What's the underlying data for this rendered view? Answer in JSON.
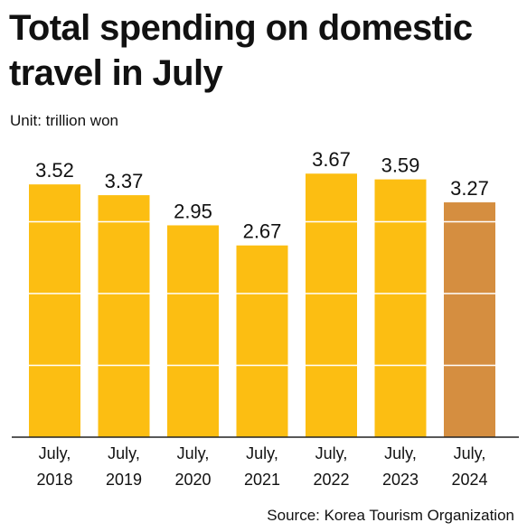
{
  "title_line1": "Total spending on domestic",
  "title_line2": "travel in July",
  "unit": "Unit: trillion won",
  "source": "Source: Korea Tourism Organization",
  "colors": {
    "bar": "#FCBE12",
    "highlight_bar": "#D58E40",
    "gridline": "#ffffff",
    "baseline": "#222222"
  },
  "chart_data": {
    "type": "bar",
    "title": "Total spending on domestic travel in July",
    "ylabel": "Unit: trillion won",
    "categories": [
      [
        "July,",
        "2018"
      ],
      [
        "July,",
        "2019"
      ],
      [
        "July,",
        "2020"
      ],
      [
        "July,",
        "2021"
      ],
      [
        "July,",
        "2022"
      ],
      [
        "July,",
        "2023"
      ],
      [
        "July,",
        "2024"
      ]
    ],
    "values": [
      3.52,
      3.37,
      2.95,
      2.67,
      3.67,
      3.59,
      3.27
    ],
    "value_labels": [
      "3.52",
      "3.37",
      "2.95",
      "2.67",
      "3.67",
      "3.59",
      "3.27"
    ],
    "highlight_index": 6,
    "ylim": [
      0,
      4
    ],
    "gridlines": [
      1,
      2,
      3
    ],
    "legend": "none"
  }
}
